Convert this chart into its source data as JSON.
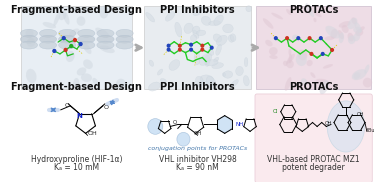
{
  "title_left": "Fragment-based Design",
  "title_mid": "PPI Inhibitors",
  "title_right": "PROTACs",
  "label_left_line1": "Hydroxyproline (HIF-1α)",
  "label_left_line2": "Kₐ = 10 mM",
  "label_mid_line1": "VHL inhibitor VH298",
  "label_mid_line2": "Kₐ = 90 nM",
  "label_right_line1": "VHL-based PROTAC MZ1",
  "label_right_line2": "potent degrader",
  "conjugation_text": "conjugation points for PROTACs",
  "bg_color": "#ffffff",
  "arrow_color": "#aaaaaa",
  "title_fontsize": 7.0,
  "label_fontsize": 5.5
}
